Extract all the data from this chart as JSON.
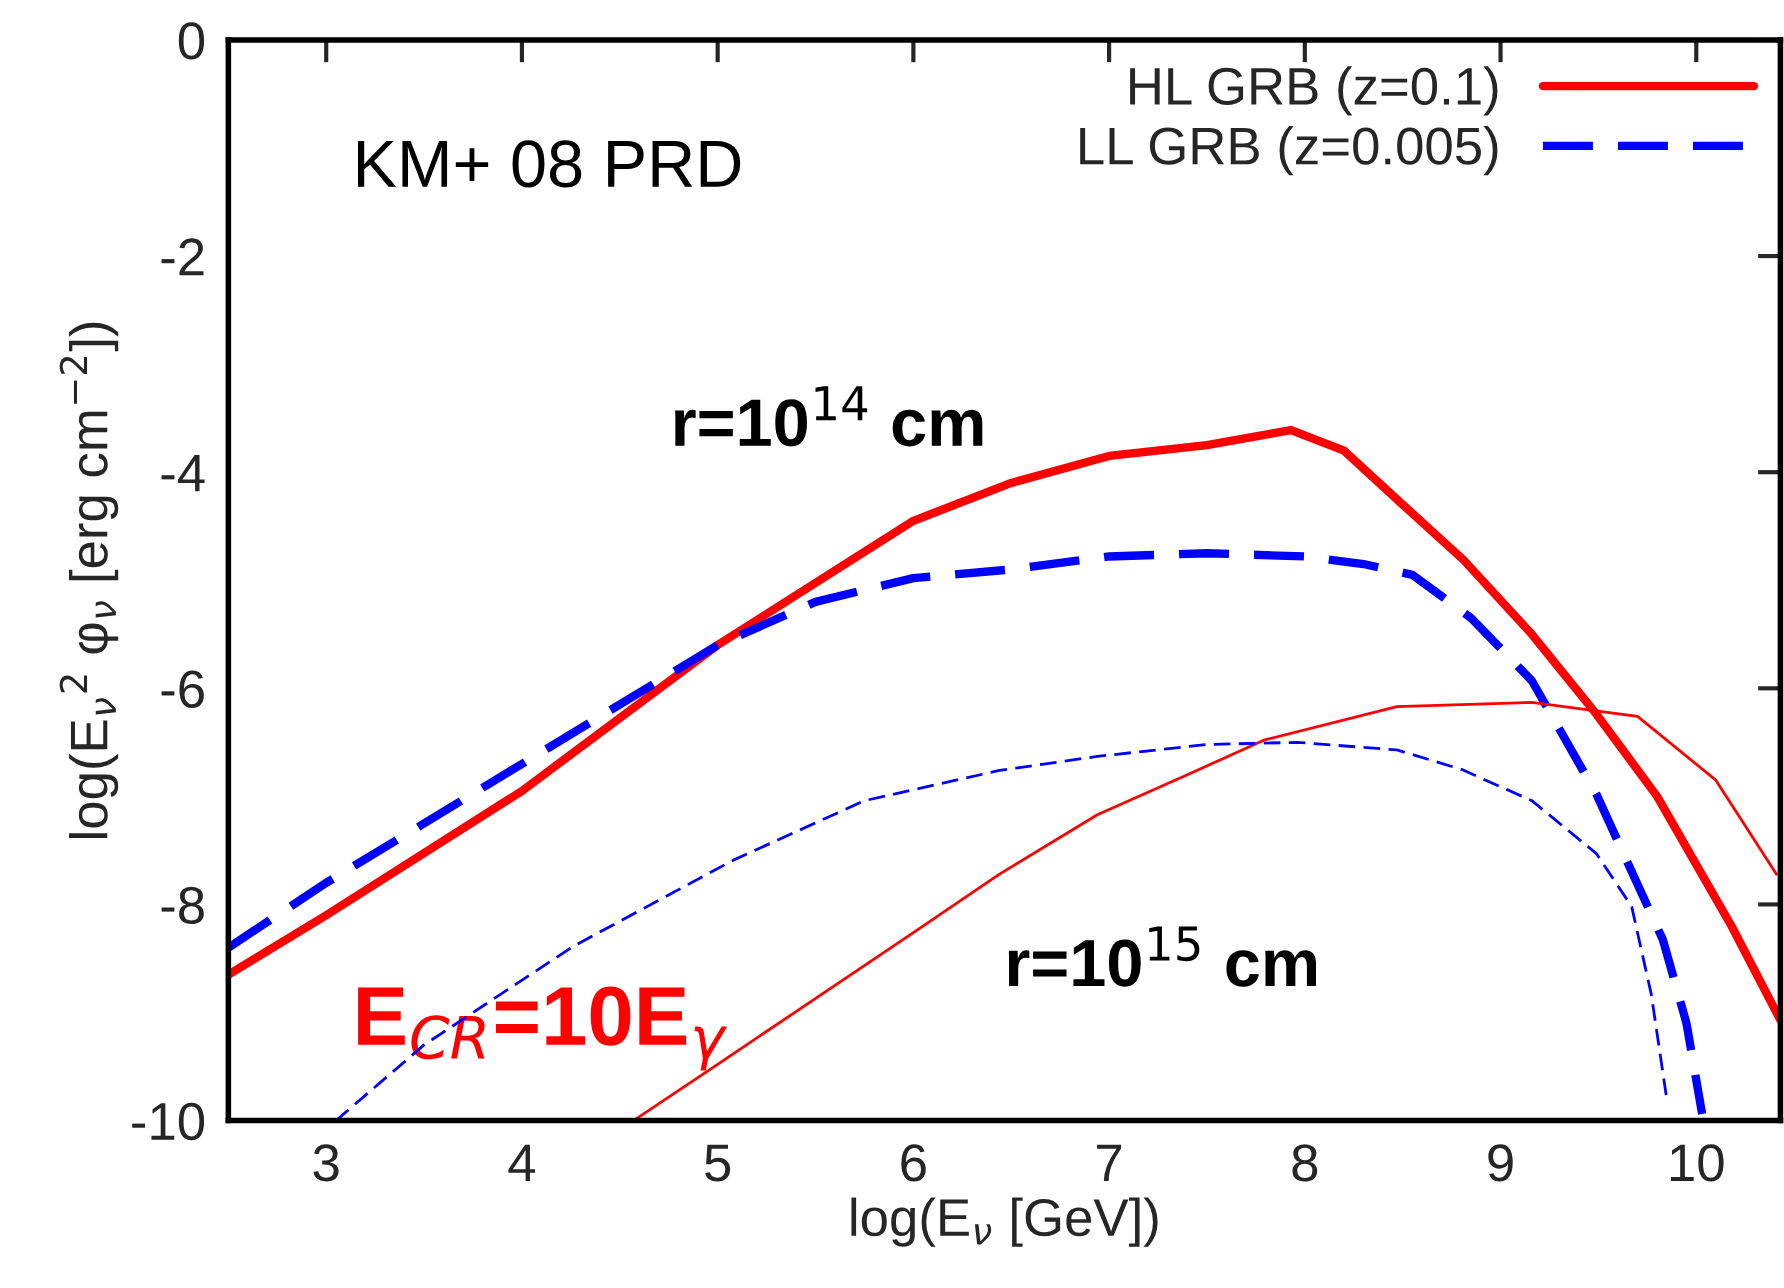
{
  "chart_data": {
    "type": "line",
    "xlabel": "log(E$_{ν}$ [GeV])",
    "ylabel": "log(E$_{ν}$$^{2}$ φ$_{ν}$ [erg cm$^{−2}$])",
    "xlim": [
      2.5,
      10.43
    ],
    "ylim": [
      -10,
      0
    ],
    "xticks": [
      3,
      4,
      5,
      6,
      7,
      8,
      9,
      10
    ],
    "yticks": [
      0,
      -2,
      -4,
      -6,
      -8,
      -10
    ],
    "grid": false,
    "legend": "top right",
    "series": [
      {
        "name": "HL GRB (z=0.1)",
        "color": "#ff0000",
        "line_style": "solid",
        "x": [
          2.5,
          3,
          4,
          5,
          6,
          6.5,
          7,
          7.5,
          7.93,
          8.2,
          8.5,
          8.81,
          9.16,
          9.49,
          9.8,
          10.18,
          10.43
        ],
        "values": [
          -8.65,
          -8.1,
          -6.95,
          -5.6,
          -4.45,
          -4.1,
          -3.85,
          -3.75,
          -3.61,
          -3.8,
          -4.3,
          -4.81,
          -5.5,
          -6.24,
          -7.0,
          -8.2,
          -9.07
        ]
      },
      {
        "name": "LL GRB (z=0.005)",
        "color": "#0000ff",
        "line_style": "dashed",
        "x": [
          2.5,
          3,
          4,
          5,
          5.5,
          6,
          6.5,
          7,
          7.5,
          8,
          8.3,
          8.55,
          8.85,
          9.16,
          9.49,
          9.83,
          9.95,
          10.03
        ],
        "values": [
          -8.4,
          -7.8,
          -6.7,
          -5.6,
          -5.2,
          -4.98,
          -4.9,
          -4.78,
          -4.75,
          -4.78,
          -4.85,
          -4.95,
          -5.35,
          -5.93,
          -6.98,
          -8.33,
          -9.1,
          -9.94
        ]
      },
      {
        "color": "#ff0000",
        "line_style": "solid",
        "x": [
          4.57,
          5,
          6,
          6.44,
          6.94,
          7.4,
          7.79,
          8.47,
          9.16,
          9.7,
          10.1,
          10.41
        ],
        "values": [
          -10,
          -9.48,
          -8.26,
          -7.72,
          -7.17,
          -6.8,
          -6.48,
          -6.17,
          -6.13,
          -6.26,
          -6.85,
          -7.72
        ]
      },
      {
        "color": "#0000ff",
        "line_style": "dashed",
        "x": [
          3.05,
          3.5,
          4.26,
          5.08,
          5.75,
          6.44,
          6.94,
          7.5,
          7.96,
          8.47,
          8.8,
          9.16,
          9.49,
          9.67,
          9.77,
          9.85
        ],
        "values": [
          -10,
          -9.3,
          -8.39,
          -7.59,
          -7.04,
          -6.76,
          -6.63,
          -6.52,
          -6.5,
          -6.57,
          -6.75,
          -7.04,
          -7.53,
          -8.02,
          -8.83,
          -9.81
        ]
      }
    ],
    "annotations": [
      "KM+ 08 PRD",
      "r=10$^{14}$ cm",
      "r=10$^{15}$ cm",
      "E$_{CR}$=10E$_{γ}$"
    ]
  }
}
